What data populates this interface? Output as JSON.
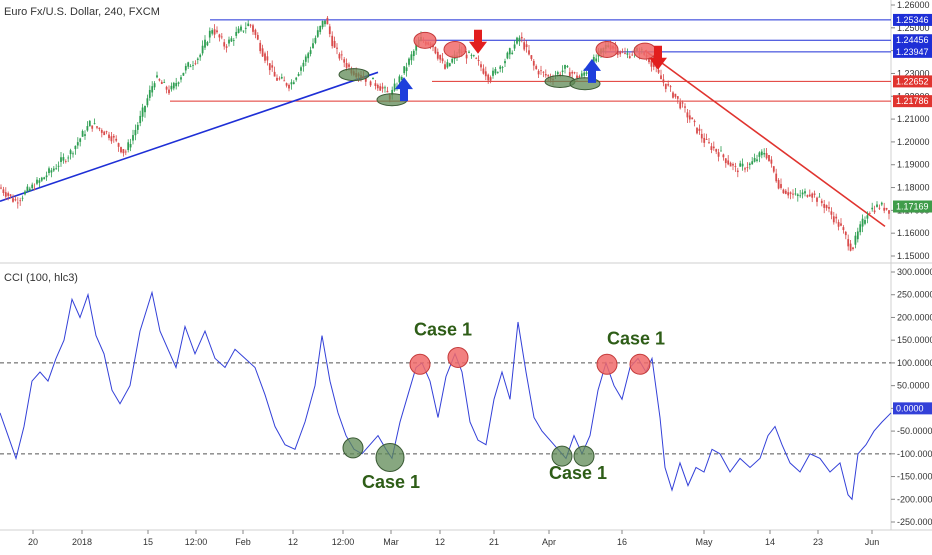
{
  "chart_data": [
    {
      "type": "candlestick",
      "title": "Euro Fx/U.S. Dollar, 240, FXCM",
      "y_ticks": [
        "1.26000",
        "1.25000",
        "1.24000",
        "1.23000",
        "1.22000",
        "1.21000",
        "1.20000",
        "1.19000",
        "1.18000",
        "1.17000",
        "1.16000",
        "1.15000"
      ],
      "ylim": [
        1.145,
        1.262
      ],
      "price_labels": [
        {
          "text": "1.25346",
          "value": 1.25346,
          "color": "#1e2fd6"
        },
        {
          "text": "1.24456",
          "value": 1.24456,
          "color": "#1e2fd6"
        },
        {
          "text": "1.23947",
          "value": 1.23947,
          "color": "#1e2fd6"
        },
        {
          "text": "1.22652",
          "value": 1.22652,
          "color": "#e0342f"
        },
        {
          "text": "1.21786",
          "value": 1.21786,
          "color": "#e0342f"
        },
        {
          "text": "1.17169",
          "value": 1.17169,
          "color": "#3f9c4a"
        }
      ],
      "price_path": [
        [
          0,
          1.18
        ],
        [
          15,
          1.174
        ],
        [
          40,
          1.183
        ],
        [
          70,
          1.195
        ],
        [
          90,
          1.208
        ],
        [
          110,
          1.203
        ],
        [
          125,
          1.195
        ],
        [
          140,
          1.21
        ],
        [
          155,
          1.228
        ],
        [
          170,
          1.222
        ],
        [
          185,
          1.232
        ],
        [
          200,
          1.238
        ],
        [
          212,
          1.25
        ],
        [
          225,
          1.242
        ],
        [
          238,
          1.248
        ],
        [
          250,
          1.252
        ],
        [
          262,
          1.24
        ],
        [
          275,
          1.228
        ],
        [
          290,
          1.225
        ],
        [
          305,
          1.236
        ],
        [
          318,
          1.248
        ],
        [
          325,
          1.254
        ],
        [
          335,
          1.24
        ],
        [
          350,
          1.232
        ],
        [
          365,
          1.228
        ],
        [
          378,
          1.225
        ],
        [
          390,
          1.22
        ],
        [
          405,
          1.232
        ],
        [
          420,
          1.245
        ],
        [
          432,
          1.243
        ],
        [
          445,
          1.232
        ],
        [
          460,
          1.24
        ],
        [
          475,
          1.236
        ],
        [
          490,
          1.228
        ],
        [
          505,
          1.236
        ],
        [
          520,
          1.246
        ],
        [
          535,
          1.232
        ],
        [
          550,
          1.228
        ],
        [
          565,
          1.232
        ],
        [
          580,
          1.228
        ],
        [
          595,
          1.236
        ],
        [
          608,
          1.243
        ],
        [
          625,
          1.238
        ],
        [
          640,
          1.24
        ],
        [
          650,
          1.236
        ],
        [
          660,
          1.228
        ],
        [
          675,
          1.22
        ],
        [
          690,
          1.21
        ],
        [
          705,
          1.2
        ],
        [
          720,
          1.195
        ],
        [
          735,
          1.188
        ],
        [
          750,
          1.19
        ],
        [
          765,
          1.196
        ],
        [
          780,
          1.18
        ],
        [
          795,
          1.176
        ],
        [
          810,
          1.178
        ],
        [
          825,
          1.172
        ],
        [
          840,
          1.163
        ],
        [
          852,
          1.153
        ],
        [
          858,
          1.16
        ],
        [
          868,
          1.17
        ],
        [
          880,
          1.172
        ],
        [
          891,
          1.17
        ]
      ],
      "trendlines": [
        {
          "from": [
            0,
            1.174
          ],
          "to": [
            378,
            1.2305
          ],
          "color": "#1e2fd6"
        },
        {
          "from": [
            645,
            1.24
          ],
          "to": [
            885,
            1.163
          ],
          "color": "#e0342f"
        }
      ],
      "hlines": [
        {
          "value": 1.25346,
          "x_start": 210,
          "color": "#1e2fd6"
        },
        {
          "value": 1.24456,
          "x_start": 418,
          "color": "#1e2fd6"
        },
        {
          "value": 1.23947,
          "x_start": 600,
          "color": "#1e2fd6"
        },
        {
          "value": 1.22652,
          "x_start": 432,
          "color": "#e0342f"
        },
        {
          "value": 1.21786,
          "x_start": 170,
          "color": "#e0342f"
        }
      ],
      "markers": [
        {
          "kind": "green-ellipse",
          "x": 354,
          "value": 1.2295
        },
        {
          "kind": "green-ellipse",
          "x": 392,
          "value": 1.2185
        },
        {
          "kind": "green-ellipse",
          "x": 560,
          "value": 1.2265
        },
        {
          "kind": "green-ellipse",
          "x": 585,
          "value": 1.2255
        },
        {
          "kind": "red-ellipse",
          "x": 425,
          "value": 1.2445
        },
        {
          "kind": "red-ellipse",
          "x": 455,
          "value": 1.2405
        },
        {
          "kind": "red-ellipse",
          "x": 607,
          "value": 1.2405
        },
        {
          "kind": "red-ellipse",
          "x": 645,
          "value": 1.2398
        }
      ],
      "arrows": [
        {
          "dir": "up",
          "x": 404,
          "value": 1.224
        },
        {
          "dir": "up",
          "x": 592,
          "value": 1.232
        },
        {
          "dir": "down",
          "x": 478,
          "value": 1.243
        },
        {
          "dir": "down",
          "x": 658,
          "value": 1.236
        }
      ]
    },
    {
      "type": "line",
      "title": "CCI (100, hlc3)",
      "y_ticks": [
        "300.0000",
        "250.0000",
        "200.0000",
        "150.0000",
        "100.0000",
        "50.0000",
        "0.0000",
        "-50.0000",
        "-100.0000",
        "-150.0000",
        "-200.0000",
        "-250.0000"
      ],
      "ylim": [
        -260,
        305
      ],
      "levels": [
        100,
        -100
      ],
      "current_value": {
        "text": "0.0000",
        "value": 0
      },
      "series": [
        {
          "color": "#3340d8",
          "points": [
            [
              0,
              -10
            ],
            [
              8,
              -60
            ],
            [
              16,
              -110
            ],
            [
              24,
              -40
            ],
            [
              32,
              60
            ],
            [
              40,
              80
            ],
            [
              48,
              60
            ],
            [
              56,
              110
            ],
            [
              64,
              150
            ],
            [
              72,
              240
            ],
            [
              80,
              200
            ],
            [
              88,
              250
            ],
            [
              96,
              160
            ],
            [
              104,
              120
            ],
            [
              112,
              40
            ],
            [
              120,
              10
            ],
            [
              130,
              50
            ],
            [
              140,
              170
            ],
            [
              152,
              255
            ],
            [
              160,
              170
            ],
            [
              168,
              130
            ],
            [
              176,
              90
            ],
            [
              185,
              180
            ],
            [
              195,
              120
            ],
            [
              205,
              170
            ],
            [
              215,
              110
            ],
            [
              225,
              90
            ],
            [
              235,
              130
            ],
            [
              245,
              110
            ],
            [
              255,
              90
            ],
            [
              265,
              30
            ],
            [
              275,
              -40
            ],
            [
              285,
              -80
            ],
            [
              295,
              -90
            ],
            [
              305,
              -30
            ],
            [
              315,
              50
            ],
            [
              322,
              160
            ],
            [
              330,
              60
            ],
            [
              338,
              -10
            ],
            [
              346,
              -60
            ],
            [
              354,
              -90
            ],
            [
              362,
              -100
            ],
            [
              370,
              -80
            ],
            [
              378,
              -60
            ],
            [
              386,
              -90
            ],
            [
              392,
              -110
            ],
            [
              400,
              -30
            ],
            [
              408,
              30
            ],
            [
              416,
              90
            ],
            [
              422,
              100
            ],
            [
              430,
              60
            ],
            [
              438,
              -20
            ],
            [
              446,
              70
            ],
            [
              455,
              120
            ],
            [
              462,
              80
            ],
            [
              470,
              -30
            ],
            [
              478,
              -70
            ],
            [
              486,
              -80
            ],
            [
              494,
              20
            ],
            [
              502,
              80
            ],
            [
              510,
              20
            ],
            [
              518,
              190
            ],
            [
              526,
              80
            ],
            [
              534,
              -20
            ],
            [
              542,
              -50
            ],
            [
              550,
              -70
            ],
            [
              558,
              -90
            ],
            [
              566,
              -110
            ],
            [
              574,
              -60
            ],
            [
              582,
              -100
            ],
            [
              590,
              -60
            ],
            [
              598,
              40
            ],
            [
              606,
              100
            ],
            [
              614,
              50
            ],
            [
              622,
              20
            ],
            [
              630,
              90
            ],
            [
              638,
              110
            ],
            [
              646,
              80
            ],
            [
              652,
              110
            ],
            [
              660,
              -20
            ],
            [
              665,
              -130
            ],
            [
              672,
              -180
            ],
            [
              680,
              -120
            ],
            [
              688,
              -170
            ],
            [
              696,
              -130
            ],
            [
              704,
              -140
            ],
            [
              712,
              -90
            ],
            [
              720,
              -100
            ],
            [
              730,
              -140
            ],
            [
              740,
              -110
            ],
            [
              750,
              -130
            ],
            [
              760,
              -110
            ],
            [
              768,
              -60
            ],
            [
              775,
              -40
            ],
            [
              782,
              -80
            ],
            [
              790,
              -120
            ],
            [
              800,
              -140
            ],
            [
              810,
              -100
            ],
            [
              820,
              -110
            ],
            [
              830,
              -140
            ],
            [
              840,
              -120
            ],
            [
              848,
              -190
            ],
            [
              852,
              -200
            ],
            [
              858,
              -100
            ],
            [
              866,
              -80
            ],
            [
              874,
              -50
            ],
            [
              882,
              -30
            ],
            [
              891,
              -10
            ]
          ]
        }
      ],
      "circles": [
        {
          "color": "green",
          "x": 353,
          "value": -87,
          "r": 10
        },
        {
          "color": "green",
          "x": 390,
          "value": -108,
          "r": 14
        },
        {
          "color": "green",
          "x": 562,
          "value": -105,
          "r": 10
        },
        {
          "color": "green",
          "x": 584,
          "value": -105,
          "r": 10
        },
        {
          "color": "red",
          "x": 420,
          "value": 97,
          "r": 10
        },
        {
          "color": "red",
          "x": 458,
          "value": 112,
          "r": 10
        },
        {
          "color": "red",
          "x": 607,
          "value": 97,
          "r": 10
        },
        {
          "color": "red",
          "x": 640,
          "value": 97,
          "r": 10
        }
      ],
      "case_labels": [
        {
          "text": "Case 1",
          "x": 443,
          "value": 160
        },
        {
          "text": "Case 1",
          "x": 391,
          "value": -175
        },
        {
          "text": "Case 1",
          "x": 578,
          "value": -155
        },
        {
          "text": "Case 1",
          "x": 636,
          "value": 140
        }
      ]
    }
  ],
  "x_axis": {
    "labels": [
      {
        "text": "20",
        "x": 33
      },
      {
        "text": "2018",
        "x": 82
      },
      {
        "text": "15",
        "x": 148
      },
      {
        "text": "12:00",
        "x": 196
      },
      {
        "text": "Feb",
        "x": 243
      },
      {
        "text": "12",
        "x": 293
      },
      {
        "text": "12:00",
        "x": 343
      },
      {
        "text": "Mar",
        "x": 391
      },
      {
        "text": "12",
        "x": 440
      },
      {
        "text": "21",
        "x": 494
      },
      {
        "text": "Apr",
        "x": 549
      },
      {
        "text": "16",
        "x": 622
      },
      {
        "text": "May",
        "x": 704
      },
      {
        "text": "14",
        "x": 770
      },
      {
        "text": "23",
        "x": 818
      },
      {
        "text": "Jun",
        "x": 872
      }
    ]
  }
}
